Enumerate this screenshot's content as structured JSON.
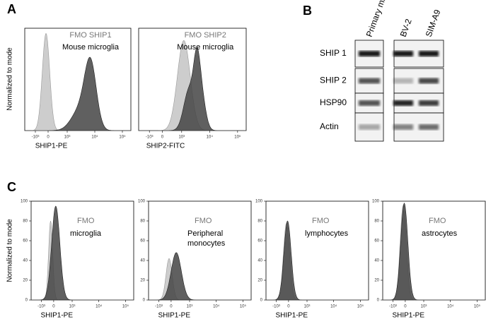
{
  "panel_a": {
    "letter": "A",
    "y_label": "Normalized to mode",
    "xticks": [
      "-10³",
      "0",
      "10³",
      "10⁴",
      "10⁵"
    ],
    "plots": [
      {
        "fmo": "FMO SHIP1",
        "cell": "Mouse microglia",
        "x_label": "SHIP1-PE"
      },
      {
        "fmo": "FMO SHIP2",
        "cell": "Mouse microglia",
        "x_label": "SHIP2-FITC"
      }
    ]
  },
  "panel_b": {
    "letter": "B",
    "lanes": [
      "Primary microglia",
      "BV-2",
      "SIM-A9"
    ],
    "rows": [
      "SHIP 1",
      "SHIP 2",
      "HSP90",
      "Actin"
    ]
  },
  "panel_c": {
    "letter": "C",
    "y_label": "Normalized to mode",
    "yticks": [
      "0",
      "20",
      "40",
      "60",
      "80",
      "100"
    ],
    "xticks": [
      "-10³",
      "0",
      "10³",
      "10⁴",
      "10⁵"
    ],
    "plots": [
      {
        "fmo": "FMO",
        "cell": "microglia",
        "x_label": "SHIP1-PE"
      },
      {
        "fmo": "FMO",
        "cell": "Peripheral monocytes",
        "x_label": "SHIP1-PE"
      },
      {
        "fmo": "FMO",
        "cell": "lymphocytes",
        "x_label": "SHIP1-PE"
      },
      {
        "fmo": "FMO",
        "cell": "astrocytes",
        "x_label": "SHIP1-PE"
      }
    ]
  }
}
